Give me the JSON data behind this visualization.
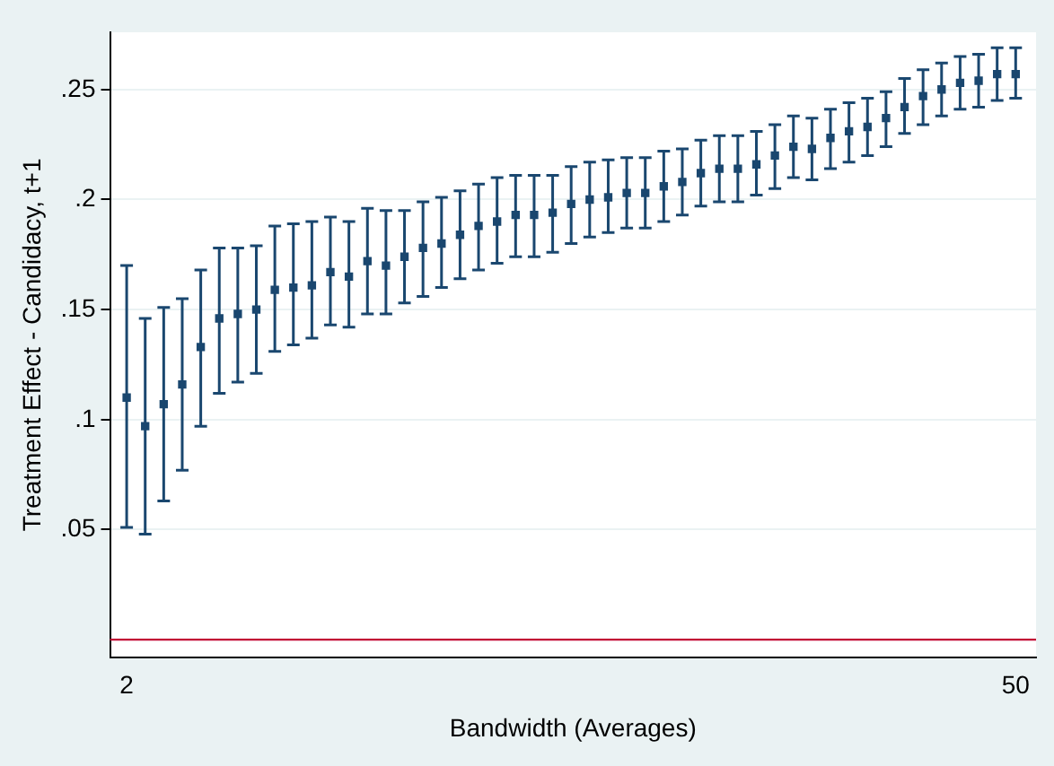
{
  "chart_data": {
    "type": "scatter",
    "xlabel": "Bandwidth (Averages)",
    "ylabel": "Treatment Effect - Candidacy, t+1",
    "x": [
      2,
      3,
      4,
      5,
      6,
      7,
      8,
      9,
      10,
      11,
      12,
      13,
      14,
      15,
      16,
      17,
      18,
      19,
      20,
      21,
      22,
      23,
      24,
      25,
      26,
      27,
      28,
      29,
      30,
      31,
      32,
      33,
      34,
      35,
      36,
      37,
      38,
      39,
      40,
      41,
      42,
      43,
      44,
      45,
      46,
      47,
      48,
      49,
      50
    ],
    "series": [
      {
        "color": "#1a476f",
        "values": [
          0.11,
          0.097,
          0.107,
          0.116,
          0.133,
          0.146,
          0.148,
          0.15,
          0.159,
          0.16,
          0.161,
          0.167,
          0.165,
          0.172,
          0.17,
          0.174,
          0.178,
          0.18,
          0.184,
          0.188,
          0.19,
          0.193,
          0.193,
          0.194,
          0.198,
          0.2,
          0.201,
          0.203,
          0.203,
          0.206,
          0.208,
          0.212,
          0.214,
          0.214,
          0.216,
          0.22,
          0.224,
          0.223,
          0.228,
          0.231,
          0.233,
          0.237,
          0.242,
          0.247,
          0.25,
          0.253,
          0.254,
          0.257,
          0.257
        ],
        "errors": [
          [
            0.051,
            0.17
          ],
          [
            0.048,
            0.146
          ],
          [
            0.063,
            0.151
          ],
          [
            0.077,
            0.155
          ],
          [
            0.097,
            0.168
          ],
          [
            0.112,
            0.178
          ],
          [
            0.117,
            0.178
          ],
          [
            0.121,
            0.179
          ],
          [
            0.131,
            0.188
          ],
          [
            0.134,
            0.189
          ],
          [
            0.137,
            0.19
          ],
          [
            0.143,
            0.192
          ],
          [
            0.142,
            0.19
          ],
          [
            0.148,
            0.196
          ],
          [
            0.148,
            0.195
          ],
          [
            0.153,
            0.195
          ],
          [
            0.156,
            0.199
          ],
          [
            0.16,
            0.201
          ],
          [
            0.164,
            0.204
          ],
          [
            0.168,
            0.207
          ],
          [
            0.171,
            0.21
          ],
          [
            0.174,
            0.211
          ],
          [
            0.174,
            0.211
          ],
          [
            0.176,
            0.211
          ],
          [
            0.18,
            0.215
          ],
          [
            0.183,
            0.217
          ],
          [
            0.185,
            0.218
          ],
          [
            0.187,
            0.219
          ],
          [
            0.187,
            0.219
          ],
          [
            0.19,
            0.222
          ],
          [
            0.193,
            0.223
          ],
          [
            0.197,
            0.227
          ],
          [
            0.199,
            0.229
          ],
          [
            0.199,
            0.229
          ],
          [
            0.202,
            0.231
          ],
          [
            0.205,
            0.234
          ],
          [
            0.21,
            0.238
          ],
          [
            0.209,
            0.237
          ],
          [
            0.214,
            0.241
          ],
          [
            0.217,
            0.244
          ],
          [
            0.22,
            0.246
          ],
          [
            0.224,
            0.249
          ],
          [
            0.23,
            0.255
          ],
          [
            0.234,
            0.259
          ],
          [
            0.238,
            0.262
          ],
          [
            0.241,
            0.265
          ],
          [
            0.242,
            0.266
          ],
          [
            0.245,
            0.269
          ],
          [
            0.246,
            0.269
          ]
        ]
      }
    ],
    "xlim": [
      1.1,
      51.1
    ],
    "xticks": [
      2,
      50
    ],
    "ylim": [
      -0.008,
      0.276
    ],
    "yticks": [
      {
        "value": 0.05,
        "label": ".05"
      },
      {
        "value": 0.1,
        "label": ".1"
      },
      {
        "value": 0.15,
        "label": ".15"
      },
      {
        "value": 0.2,
        "label": ".2"
      },
      {
        "value": 0.25,
        "label": ".25"
      }
    ],
    "ref_lines": [
      {
        "axis": "y",
        "value": 0,
        "color": "#c10534"
      }
    ],
    "grid": "y",
    "legend": false,
    "marker": "square"
  }
}
